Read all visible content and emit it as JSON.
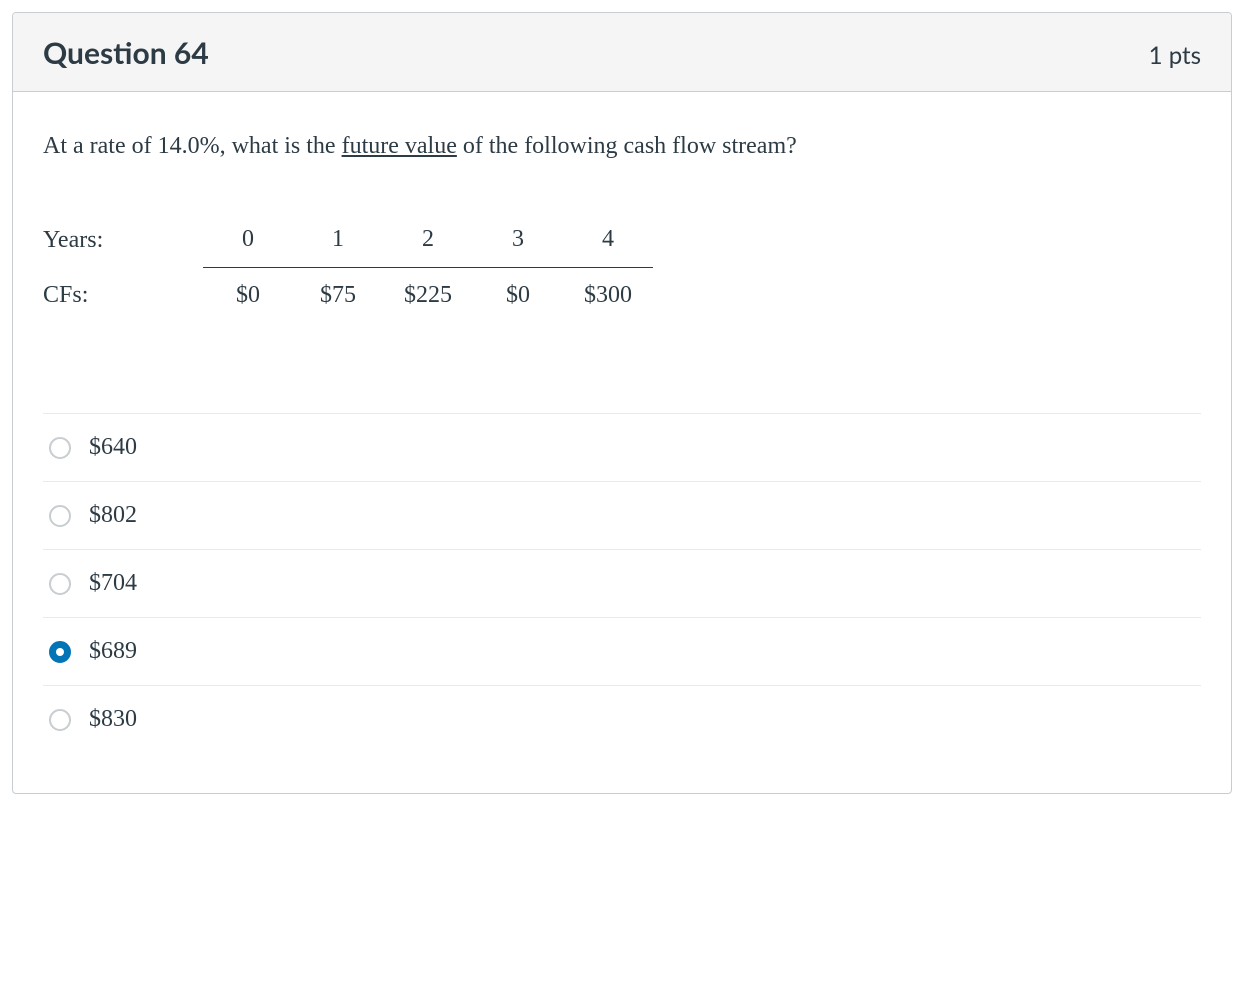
{
  "question": {
    "title": "Question 64",
    "points": "1 pts",
    "prompt_before": "At a rate of 14.0%, what is the ",
    "prompt_underlined": "future value",
    "prompt_after": " of the following cash flow stream?"
  },
  "cashflow_table": {
    "type": "table",
    "years_label": "Years:",
    "cfs_label": "CFs:",
    "years": [
      "0",
      "1",
      "2",
      "3",
      "4"
    ],
    "cfs": [
      "$0",
      "$75",
      "$225",
      "$0",
      "$300"
    ],
    "text_color": "#2d3b45",
    "rule_color": "#2d3b45",
    "fontsize": 24
  },
  "answers": {
    "options": [
      {
        "label": "$640",
        "selected": false
      },
      {
        "label": "$802",
        "selected": false
      },
      {
        "label": "$704",
        "selected": false
      },
      {
        "label": "$689",
        "selected": true
      },
      {
        "label": "$830",
        "selected": false
      }
    ],
    "radio_border_color": "#c7cdd1",
    "radio_selected_color": "#0374b5",
    "divider_color": "#e8eaec"
  },
  "card": {
    "header_bg": "#f5f5f5",
    "border_color": "#c7cdd1",
    "text_color": "#2d3b45",
    "background_color": "#ffffff"
  }
}
